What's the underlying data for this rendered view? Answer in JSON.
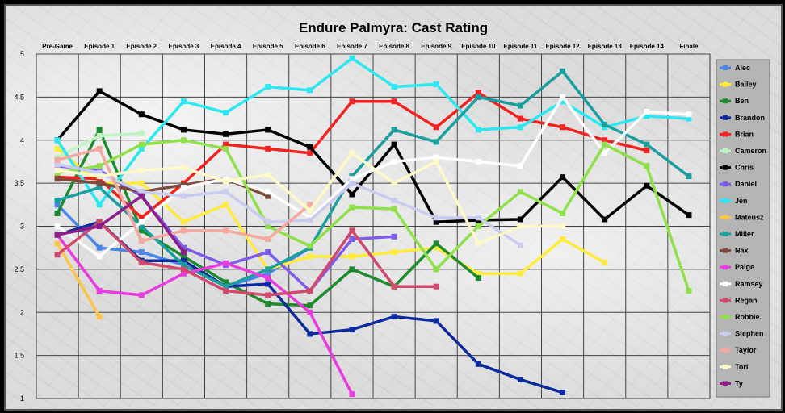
{
  "chart_data": {
    "type": "line",
    "title": "Endure Palmyra: Cast Rating",
    "xlabel": "",
    "ylabel": "",
    "ylim": [
      1,
      5
    ],
    "yticks": [
      "1",
      "1.5",
      "2",
      "2.5",
      "3",
      "3.5",
      "4",
      "4.5",
      "5"
    ],
    "ytick_values": [
      1,
      1.5,
      2,
      2.5,
      3,
      3.5,
      4,
      4.5,
      5
    ],
    "grid": true,
    "legend_position": "right",
    "categories": [
      "Pre-Game",
      "Episode 1",
      "Episode 2",
      "Episode 3",
      "Episode 4",
      "Episode 5",
      "Episode 6",
      "Episode 7",
      "Episode 8",
      "Episode 9",
      "Episode 10",
      "Episode 11",
      "Episode 12",
      "Episode 13",
      "Episode 14",
      "Finale"
    ],
    "series": [
      {
        "name": "Alec",
        "color": "#4A86E8",
        "values": [
          3.25,
          2.75,
          2.7,
          2.55,
          2.3,
          2.45,
          2.75,
          null,
          null,
          null,
          null,
          null,
          null,
          null,
          null,
          null
        ]
      },
      {
        "name": "Bailey",
        "color": "#FFEB3B",
        "values": [
          3.9,
          3.5,
          3.5,
          3.05,
          3.25,
          2.5,
          2.65,
          2.65,
          2.7,
          2.75,
          2.45,
          2.45,
          2.85,
          2.58,
          null,
          null
        ]
      },
      {
        "name": "Ben",
        "color": "#1E8A2E",
        "values": [
          3.15,
          4.12,
          2.95,
          2.65,
          2.35,
          2.1,
          2.08,
          2.5,
          2.3,
          2.8,
          2.4,
          null,
          null,
          null,
          null,
          null
        ]
      },
      {
        "name": "Brandon",
        "color": "#0D2B9C",
        "values": [
          2.9,
          3.05,
          2.6,
          2.6,
          2.3,
          2.33,
          1.75,
          1.8,
          1.95,
          1.9,
          1.4,
          1.22,
          1.07,
          null,
          null,
          null
        ]
      },
      {
        "name": "Brian",
        "color": "#F22222",
        "values": [
          3.57,
          3.55,
          3.1,
          3.5,
          3.95,
          3.9,
          3.85,
          4.45,
          4.45,
          4.15,
          4.55,
          4.25,
          4.15,
          4.0,
          3.88,
          null
        ]
      },
      {
        "name": "Cameron",
        "color": "#BFF5C5",
        "values": [
          3.8,
          4.05,
          4.08,
          null,
          null,
          null,
          null,
          null,
          null,
          null,
          null,
          null,
          null,
          null,
          null,
          null
        ]
      },
      {
        "name": "Chris",
        "color": "#000000",
        "values": [
          4.0,
          4.57,
          4.3,
          4.12,
          4.07,
          4.12,
          3.92,
          3.37,
          3.95,
          3.05,
          3.07,
          3.08,
          3.57,
          3.08,
          3.47,
          3.13
        ]
      },
      {
        "name": "Daniel",
        "color": "#7E5BE8",
        "values": [
          3.7,
          3.65,
          3.35,
          2.75,
          2.55,
          2.7,
          2.25,
          2.85,
          2.88,
          null,
          null,
          null,
          null,
          null,
          null,
          null
        ]
      },
      {
        "name": "Jen",
        "color": "#2BE8F0",
        "values": [
          4.0,
          3.25,
          3.9,
          4.45,
          4.32,
          4.62,
          4.58,
          4.95,
          4.62,
          4.65,
          4.12,
          4.15,
          4.45,
          4.15,
          4.28,
          4.25
        ]
      },
      {
        "name": "Mateusz",
        "color": "#FFC34A",
        "values": [
          2.8,
          1.95,
          null,
          null,
          null,
          null,
          null,
          null,
          null,
          null,
          null,
          null,
          null,
          null,
          null,
          null
        ]
      },
      {
        "name": "Miller",
        "color": "#1A9E9E",
        "values": [
          3.3,
          3.45,
          3.0,
          2.55,
          2.3,
          2.5,
          2.75,
          3.58,
          4.12,
          3.98,
          4.5,
          4.4,
          4.8,
          4.18,
          3.95,
          3.58
        ]
      },
      {
        "name": "Nax",
        "color": "#7B4A3A",
        "values": [
          3.55,
          3.5,
          3.4,
          3.48,
          3.55,
          3.35,
          null,
          null,
          null,
          null,
          null,
          null,
          null,
          null,
          null,
          null
        ]
      },
      {
        "name": "Paige",
        "color": "#E83CE0",
        "values": [
          2.9,
          2.25,
          2.2,
          2.45,
          2.57,
          2.4,
          2.0,
          1.05,
          null,
          null,
          null,
          null,
          null,
          null,
          null,
          null
        ]
      },
      {
        "name": "Ramsey",
        "color": "#FFFFFF",
        "values": [
          3.0,
          2.65,
          3.05,
          3.45,
          3.55,
          3.4,
          3.1,
          3.55,
          3.75,
          3.8,
          3.75,
          3.7,
          4.5,
          3.85,
          4.33,
          4.3
        ]
      },
      {
        "name": "Regan",
        "color": "#D14A6E",
        "values": [
          2.67,
          3.05,
          2.58,
          2.5,
          2.25,
          2.2,
          2.25,
          2.95,
          2.3,
          2.3,
          null,
          null,
          null,
          null,
          null,
          null
        ]
      },
      {
        "name": "Robbie",
        "color": "#8FE04A",
        "values": [
          3.62,
          3.7,
          3.95,
          4.0,
          3.9,
          3.0,
          2.77,
          3.22,
          3.2,
          2.5,
          3.0,
          3.4,
          3.15,
          3.95,
          3.7,
          2.25
        ]
      },
      {
        "name": "Stephen",
        "color": "#C8CDF0",
        "values": [
          3.72,
          3.62,
          3.4,
          3.35,
          3.4,
          3.05,
          3.07,
          3.5,
          3.3,
          3.1,
          3.1,
          2.78,
          null,
          null,
          null,
          null
        ]
      },
      {
        "name": "Taylor",
        "color": "#F4A8A0",
        "values": [
          3.77,
          3.9,
          2.83,
          2.95,
          2.95,
          2.85,
          3.25,
          null,
          null,
          null,
          null,
          null,
          null,
          null,
          null,
          null
        ]
      },
      {
        "name": "Tori",
        "color": "#FFF8C8",
        "values": [
          3.65,
          3.58,
          3.65,
          3.68,
          3.52,
          3.6,
          3.18,
          3.85,
          3.5,
          3.75,
          2.8,
          3.0,
          3.0,
          null,
          null,
          null
        ]
      },
      {
        "name": "Ty",
        "color": "#8B1E8B",
        "values": [
          2.9,
          3.0,
          3.35,
          2.7,
          null,
          null,
          null,
          null,
          null,
          null,
          null,
          null,
          null,
          null,
          null,
          null
        ]
      }
    ]
  }
}
